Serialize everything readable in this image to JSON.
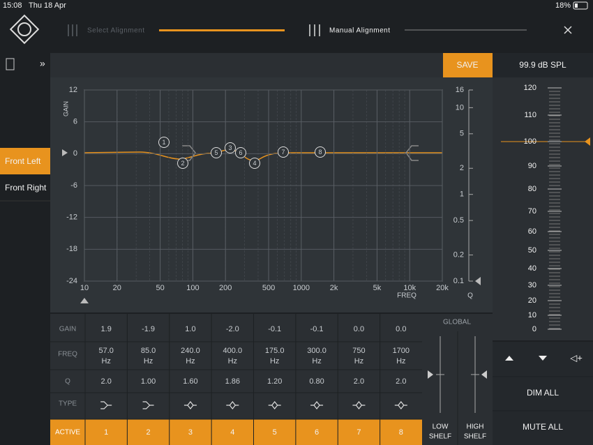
{
  "status": {
    "time": "15:08",
    "date": "Thu 18 Apr",
    "battery": "18%"
  },
  "nav": {
    "select": "Select Alignment",
    "manual": "Manual Alignment"
  },
  "sidebar": {
    "channels": [
      "Front Left",
      "Front Right"
    ]
  },
  "graph": {
    "save": "SAVE",
    "gain_label": "GAIN",
    "freq_label": "FREQ",
    "q_label": "Q",
    "gain_ticks": [
      12,
      6,
      0,
      -6,
      -12,
      -18,
      -24
    ],
    "freq_ticks": [
      10,
      20,
      50,
      100,
      200,
      500,
      1000,
      {
        "value": 2000,
        "label": "2k"
      },
      {
        "value": 5000,
        "label": "5k"
      },
      {
        "value": 10000,
        "label": "10k"
      },
      {
        "value": 20000,
        "label": "20k"
      }
    ],
    "q_ticks": [
      16,
      10,
      5,
      2,
      1,
      0.5,
      0.2,
      0.1
    ]
  },
  "table": {
    "row_labels": [
      "GAIN",
      "FREQ",
      "Q",
      "TYPE",
      "ACTIVE"
    ],
    "freq_unit": "Hz",
    "filters": [
      {
        "gain": "1.9",
        "freq": "57.0",
        "q": "2.0",
        "active": "1"
      },
      {
        "gain": "-1.9",
        "freq": "85.0",
        "q": "1.00",
        "active": "2"
      },
      {
        "gain": "1.0",
        "freq": "240.0",
        "q": "1.60",
        "active": "3"
      },
      {
        "gain": "-2.0",
        "freq": "400.0",
        "q": "1.86",
        "active": "4"
      },
      {
        "gain": "-0.1",
        "freq": "175.0",
        "q": "1.20",
        "active": "5"
      },
      {
        "gain": "-0.1",
        "freq": "300.0",
        "q": "0.80",
        "active": "6"
      },
      {
        "gain": "0.0",
        "freq": "750",
        "q": "2.0",
        "active": "7"
      },
      {
        "gain": "0.0",
        "freq": "1700",
        "q": "2.0",
        "active": "8"
      }
    ]
  },
  "global": {
    "title": "GLOBAL",
    "low": [
      "LOW",
      "SHELF"
    ],
    "high": [
      "HIGH",
      "SHELF"
    ]
  },
  "meter": {
    "spl": "99.9 dB SPL",
    "ticks": [
      120,
      110,
      100,
      90,
      80,
      70,
      60,
      50,
      40,
      30,
      20,
      10,
      0
    ]
  },
  "buttons": {
    "dim": "DIM ALL",
    "mute": "MUTE ALL"
  }
}
